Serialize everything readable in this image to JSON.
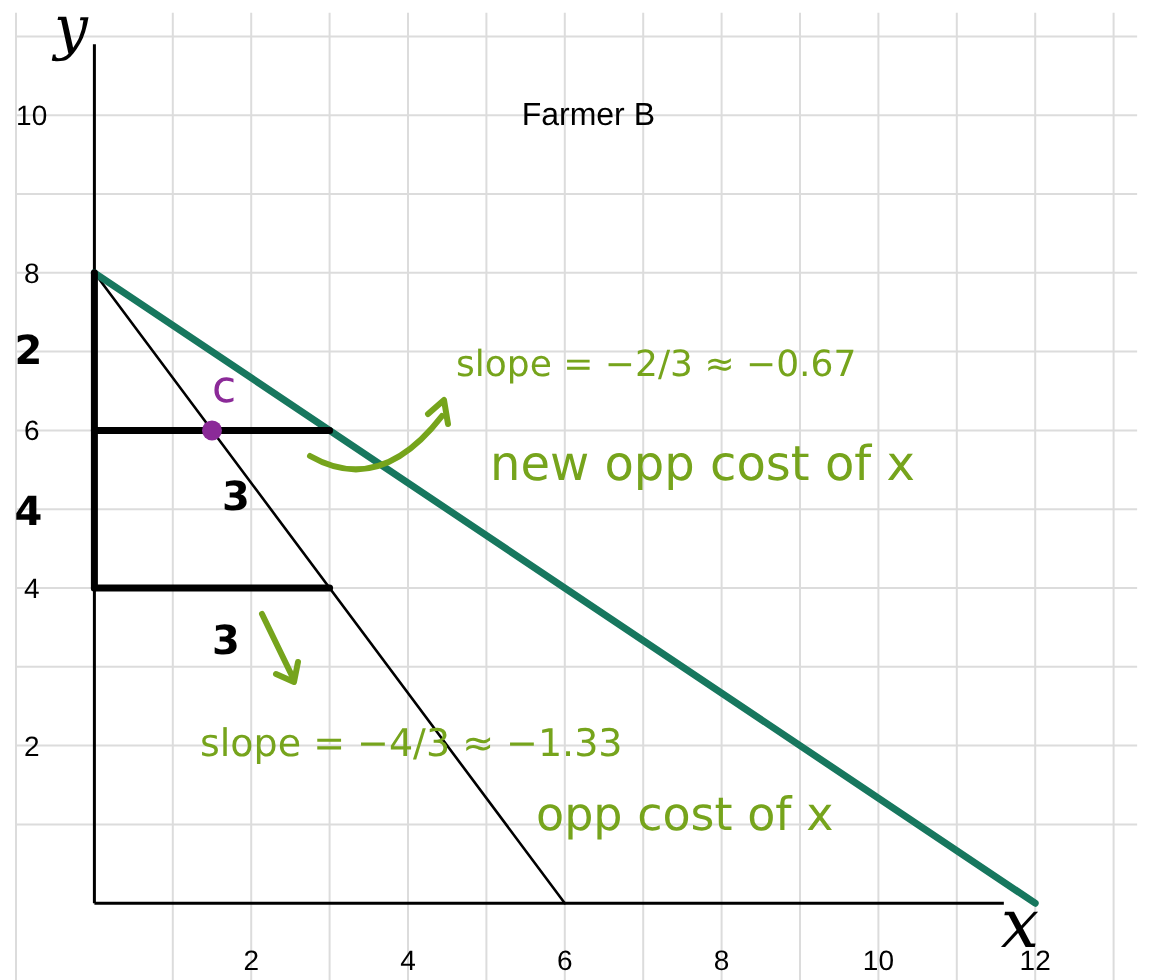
{
  "chart_data": {
    "type": "line",
    "title": "Farmer B",
    "xlabel": "x",
    "ylabel": "y",
    "xlim": [
      -1,
      13.3
    ],
    "ylim": [
      -1,
      11.3
    ],
    "xticks": [
      {
        "value": -1,
        "label": null
      },
      {
        "value": 1,
        "label": null
      },
      2,
      {
        "value": 3,
        "label": null
      },
      4,
      {
        "value": 5,
        "label": null
      },
      6,
      {
        "value": 7,
        "label": null
      },
      8,
      {
        "value": 9,
        "label": null
      },
      10,
      {
        "value": 11,
        "label": null
      },
      12,
      {
        "value": 13,
        "label": null
      }
    ],
    "yticks": [
      {
        "value": 1,
        "label": null
      },
      2,
      {
        "value": 3,
        "label": null
      },
      4,
      {
        "value": 5,
        "label": null
      },
      6,
      {
        "value": 7,
        "label": null
      },
      8,
      {
        "value": 9,
        "label": null
      },
      10,
      {
        "value": 11,
        "label": null
      }
    ],
    "grid": true,
    "line_style": "solid",
    "series": [
      {
        "color": "#000000",
        "x": [
          0,
          6
        ],
        "values": [
          8,
          0
        ]
      },
      {
        "color": "#17775e",
        "x": [
          0,
          12
        ],
        "values": [
          8,
          0
        ]
      },
      {
        "color": "#000000",
        "x": [
          0,
          0
        ],
        "values": [
          8,
          4
        ]
      },
      {
        "color": "#000000",
        "x": [
          0,
          3
        ],
        "values": [
          6,
          6
        ]
      },
      {
        "color": "#000000",
        "x": [
          0,
          3
        ],
        "values": [
          4,
          4
        ]
      },
      {
        "type": "scatter",
        "color": "#8b2a98",
        "x": [
          1.5
        ],
        "values": [
          6
        ]
      }
    ],
    "annotations": [
      {
        "text": "c",
        "x": 1.5,
        "y": 6
      },
      {
        "text": "2",
        "x": 0,
        "y": 7
      },
      {
        "text": "4",
        "x": 0,
        "y": 5
      },
      {
        "text": "3",
        "x": 1.5,
        "y": 6
      },
      "3",
      "slope = −2/3 ≈ −0.67",
      "new opp cost of x",
      {
        "text": "slope = −4/3 ≈ −1.33",
        "x": 4.2,
        "y": 2.4
      },
      "opp cost of x"
    ]
  }
}
